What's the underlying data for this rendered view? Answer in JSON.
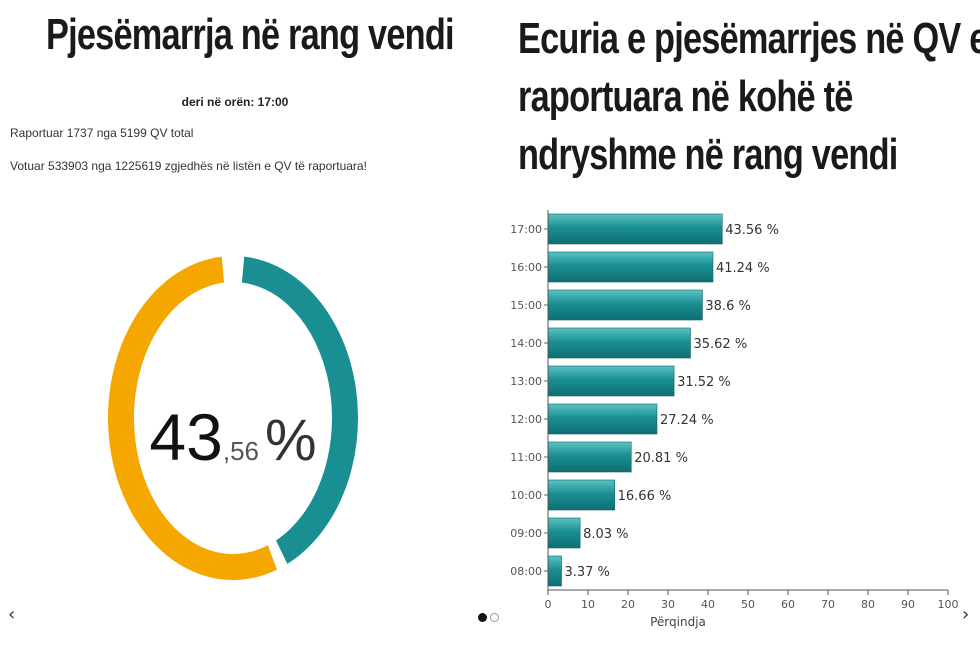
{
  "left_panel": {
    "title": "Pjesëmarrja në rang vendi",
    "until_time": "deri në orën: 17:00",
    "reported_text": "Raportuar 1737 nga 5199 QV total",
    "voted_text": "Votuar 533903 nga 1225619 zgjedhës në listën e QV të raportuara!",
    "donut": {
      "percent_int": "43",
      "percent_dec": ",56",
      "percent_sign": "%",
      "value": 43.56,
      "colors": {
        "filled": "#1a8f93",
        "remaining": "#f5a700"
      }
    }
  },
  "right_panel": {
    "title_lines": [
      "Ecuria e pjesëmarrjes në QV e",
      "raportuara në kohë të",
      "ndryshme në rang vendi"
    ]
  },
  "chart_data": {
    "type": "bar",
    "orientation": "horizontal",
    "categories": [
      "17:00",
      "16:00",
      "15:00",
      "14:00",
      "13:00",
      "12:00",
      "11:00",
      "10:00",
      "09:00",
      "08:00"
    ],
    "values": [
      43.56,
      41.24,
      38.6,
      35.62,
      31.52,
      27.24,
      20.81,
      16.66,
      8.03,
      3.37
    ],
    "data_labels": [
      "43.56 %",
      "41.24 %",
      "38.6 %",
      "35.62 %",
      "31.52 %",
      "27.24 %",
      "20.81 %",
      "16.66 %",
      "8.03 %",
      "3.37 %"
    ],
    "xlabel": "Përqindja",
    "xlim": [
      0,
      100
    ],
    "xticks": [
      0,
      10,
      20,
      30,
      40,
      50,
      60,
      70,
      80,
      90,
      100
    ],
    "bar_color": "#1a8f93"
  },
  "nav": {
    "prev": "‹",
    "next": "›"
  }
}
